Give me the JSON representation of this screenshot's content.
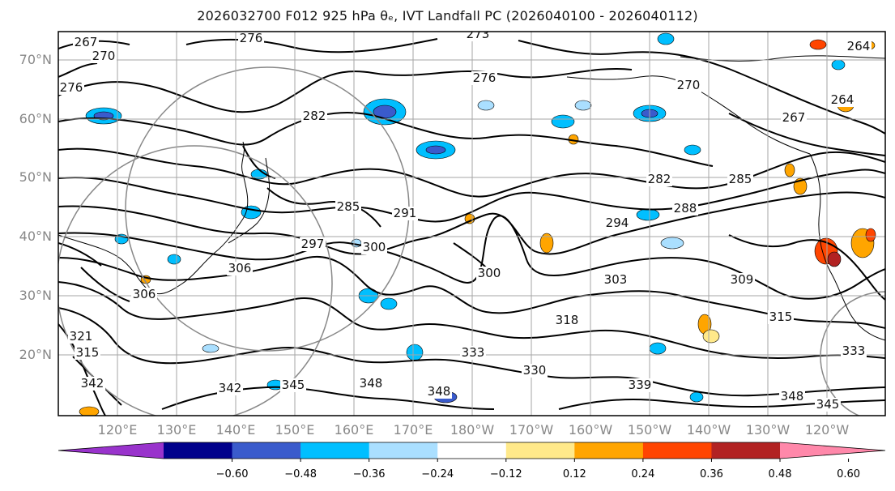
{
  "title": "2026032700 F012 925 hPa θₑ, IVT Landfall PC (2026040100 - 2026040112)",
  "map": {
    "lat_labels": [
      "70°N",
      "60°N",
      "50°N",
      "40°N",
      "30°N",
      "20°N"
    ],
    "lon_labels": [
      "120°E",
      "130°E",
      "140°E",
      "150°E",
      "160°E",
      "170°E",
      "180°W",
      "170°W",
      "160°W",
      "150°W",
      "140°W",
      "130°W",
      "120°W"
    ],
    "contour_labels": [
      "267",
      "270",
      "273",
      "276",
      "276",
      "276",
      "270",
      "264",
      "264",
      "267",
      "282",
      "285",
      "291",
      "297",
      "300",
      "306",
      "282",
      "294",
      "288",
      "285",
      "300",
      "303",
      "309",
      "315",
      "318",
      "333",
      "330",
      "342",
      "345",
      "348",
      "348",
      "339",
      "345",
      "348",
      "333",
      "306",
      "321",
      "315",
      "342"
    ],
    "colors": {
      "background": "#ffffff",
      "contour": "#000000",
      "grid": "#a6a6a6",
      "coast": "#000000",
      "circle": "#888888"
    }
  },
  "colorbar": {
    "colors": [
      "#9933cc",
      "#00008b",
      "#3a5bcc",
      "#00bfff",
      "#aadfff",
      "#ffffff",
      "#ffe98a",
      "#ffa500",
      "#ff4500",
      "#b22222",
      "#ff88aa"
    ],
    "tick_labels": [
      "−0.60",
      "−0.48",
      "−0.36",
      "−0.24",
      "−0.12",
      "0.12",
      "0.24",
      "0.36",
      "0.48",
      "0.60"
    ]
  }
}
